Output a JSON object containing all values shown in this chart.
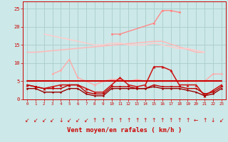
{
  "x": [
    0,
    1,
    2,
    3,
    4,
    5,
    6,
    7,
    8,
    9,
    10,
    11,
    12,
    13,
    14,
    15,
    16,
    17,
    18,
    19,
    20,
    21,
    22,
    23
  ],
  "background_color": "#cce8e8",
  "grid_color": "#aacccc",
  "xlabel": "Vent moyen/en rafales ( km/h )",
  "label_color": "#cc0000",
  "ylim": [
    0,
    27
  ],
  "yticks": [
    0,
    5,
    10,
    15,
    20,
    25
  ],
  "series": [
    {
      "name": "light_flat_top",
      "color": "#ffb8b8",
      "lw": 1.1,
      "marker": null,
      "data": [
        13,
        13,
        null,
        null,
        null,
        null,
        null,
        null,
        null,
        null,
        null,
        null,
        null,
        null,
        null,
        16,
        16,
        null,
        null,
        null,
        13,
        13,
        null,
        null
      ]
    },
    {
      "name": "light_declining",
      "color": "#ffcccc",
      "lw": 1.1,
      "marker": null,
      "data": [
        null,
        null,
        18,
        17.5,
        17,
        16.5,
        16,
        15.5,
        15,
        15,
        15.5,
        15.5,
        15,
        15,
        15,
        15.5,
        15,
        14.5,
        14,
        14,
        13.5,
        13,
        null,
        null
      ]
    },
    {
      "name": "pink_spiky_upper",
      "color": "#ff8888",
      "lw": 1.0,
      "marker": "o",
      "markersize": 2.2,
      "data": [
        null,
        null,
        null,
        null,
        null,
        null,
        null,
        null,
        null,
        null,
        18,
        18,
        null,
        null,
        null,
        21,
        24.5,
        24.5,
        24,
        null,
        null,
        null,
        null,
        null
      ]
    },
    {
      "name": "pink_mid_wavy",
      "color": "#ffaaaa",
      "lw": 1.0,
      "marker": "o",
      "markersize": 2.0,
      "data": [
        null,
        null,
        null,
        7,
        8,
        11,
        6,
        5,
        4,
        5,
        5.5,
        5.5,
        5,
        5.5,
        5,
        5,
        5,
        5,
        5,
        5,
        5,
        5,
        7,
        7
      ]
    },
    {
      "name": "red_spiky",
      "color": "#cc1111",
      "lw": 1.1,
      "marker": "^",
      "markersize": 2.8,
      "data": [
        4,
        3.5,
        3,
        3.5,
        4,
        4,
        4,
        3,
        2,
        2,
        4,
        6,
        4,
        3.5,
        4,
        9,
        9,
        8,
        4,
        4,
        4,
        1,
        2.5,
        4
      ]
    },
    {
      "name": "red_flat5",
      "color": "#cc0000",
      "lw": 1.5,
      "marker": null,
      "data": [
        5,
        5,
        5,
        5,
        5,
        5,
        5,
        5,
        5,
        5,
        5,
        5,
        5,
        5,
        5,
        5,
        5,
        5,
        5,
        5,
        5,
        5,
        5,
        5
      ]
    },
    {
      "name": "red_lower",
      "color": "#bb0000",
      "lw": 1.0,
      "marker": "v",
      "markersize": 2.2,
      "data": [
        4,
        3.5,
        3,
        3,
        3,
        4,
        4,
        2,
        1.5,
        1.5,
        3.5,
        3.5,
        3.5,
        3,
        3,
        4,
        3.5,
        3.5,
        3.5,
        3,
        3,
        1.5,
        2,
        3.5
      ]
    },
    {
      "name": "dark_red_lowest",
      "color": "#990000",
      "lw": 1.0,
      "marker": "o",
      "markersize": 1.8,
      "data": [
        3,
        3,
        2,
        2,
        2,
        3,
        3,
        1.5,
        1,
        1,
        3,
        3,
        3,
        3,
        3,
        3.5,
        3,
        3,
        3,
        2.5,
        2,
        1,
        1.5,
        3
      ]
    }
  ],
  "wind_arrows": [
    "↙",
    "↙",
    "↙",
    "↙",
    "↓",
    "↙",
    "↙",
    "↙",
    "↑",
    "↑",
    "↑",
    "↑",
    "↑",
    "↑",
    "↑",
    "↑",
    "↑",
    "↑",
    "↑",
    "↑",
    "←",
    "↑",
    "↓",
    "↙"
  ],
  "wind_arrow_color": "#cc0000"
}
